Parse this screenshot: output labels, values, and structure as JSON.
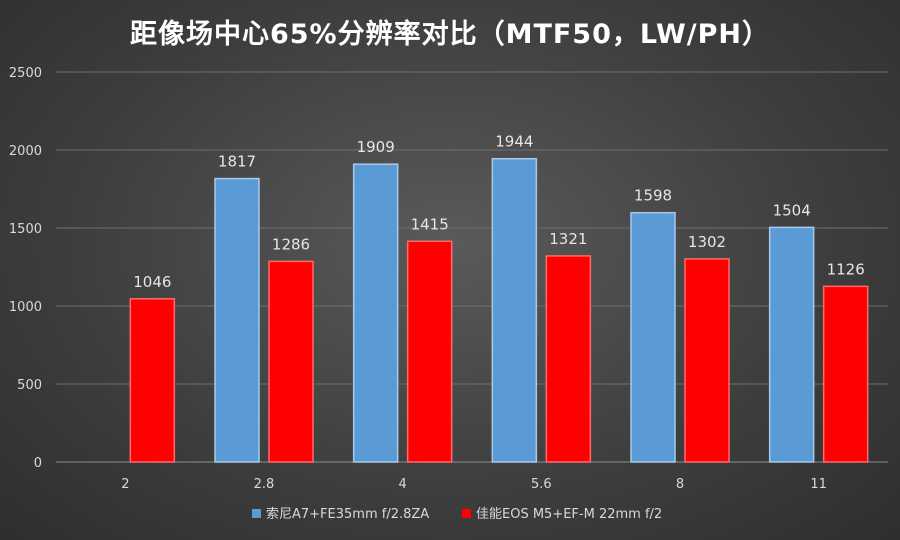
{
  "chart_data": {
    "type": "bar",
    "title": "距像场中心65%分辨率对比（MTF50，LW/PH）",
    "xlabel": "",
    "ylabel": "",
    "categories": [
      "2",
      "2.8",
      "4",
      "5.6",
      "8",
      "11"
    ],
    "series": [
      {
        "name": "索尼A7+FE35mm f/2.8ZA",
        "color": "#5b9bd5",
        "values": [
          null,
          1817,
          1909,
          1944,
          1598,
          1504
        ]
      },
      {
        "name": "佳能EOS M5+EF-M 22mm f/2",
        "color": "#ff0000",
        "values": [
          1046,
          1286,
          1415,
          1321,
          1302,
          1126
        ]
      }
    ],
    "ylim": [
      0,
      2500
    ],
    "yticks": [
      0,
      500,
      1000,
      1500,
      2000,
      2500
    ],
    "grid": true,
    "legend_position": "bottom"
  }
}
